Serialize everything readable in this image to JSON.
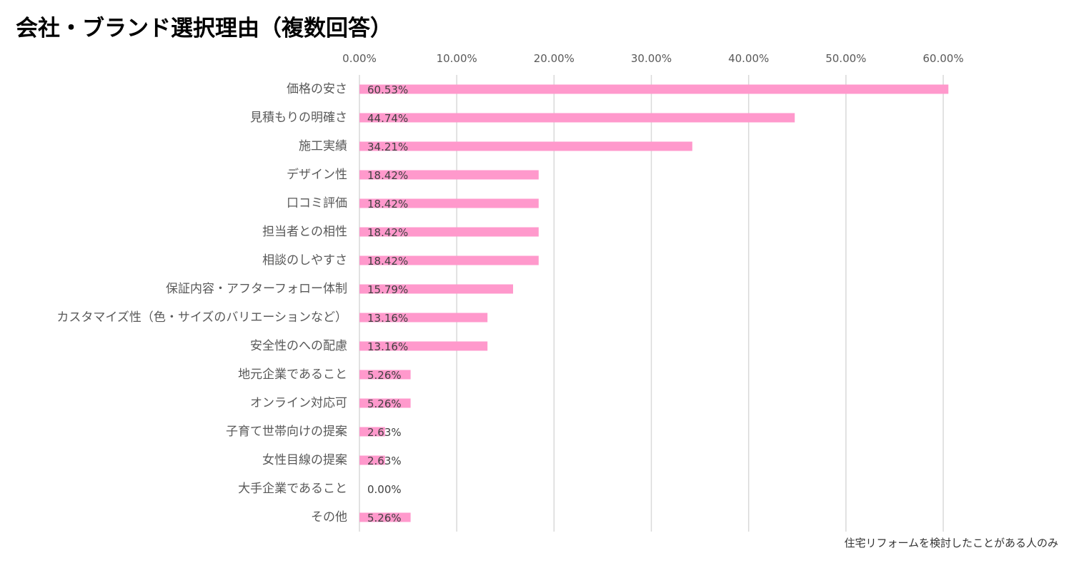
{
  "chart_data": {
    "type": "bar",
    "orientation": "horizontal",
    "title": "会社・ブランド選択理由（複数回答）",
    "note": "住宅リフォームを検討したことがある人のみ",
    "xlim": [
      0,
      60
    ],
    "x_ticks": [
      "0.00%",
      "10.00%",
      "20.00%",
      "30.00%",
      "40.00%",
      "50.00%",
      "60.00%"
    ],
    "x_axis_position": "top",
    "grid": "vertical",
    "legend": "none",
    "bar_color": "#FF99CC",
    "categories": [
      "価格の安さ",
      "見積もりの明確さ",
      "施工実績",
      "デザイン性",
      "口コミ評価",
      "担当者との相性",
      "相談のしやすさ",
      "保証内容・アフターフォロー体制",
      "カスタマイズ性（色・サイズのバリエーションなど）",
      "安全性のへの配慮",
      "地元企業であること",
      "オンライン対応可",
      "子育て世帯向けの提案",
      "女性目線の提案",
      "大手企業であること",
      "その他"
    ],
    "values": [
      60.53,
      44.74,
      34.21,
      18.42,
      18.42,
      18.42,
      18.42,
      15.79,
      13.16,
      13.16,
      5.26,
      5.26,
      2.63,
      2.63,
      0.0,
      5.26
    ],
    "data_labels": [
      "60.53%",
      "44.74%",
      "34.21%",
      "18.42%",
      "18.42%",
      "18.42%",
      "18.42%",
      "15.79%",
      "13.16%",
      "13.16%",
      "5.26%",
      "5.26%",
      "2.63%",
      "2.63%",
      "0.00%",
      "5.26%"
    ]
  }
}
